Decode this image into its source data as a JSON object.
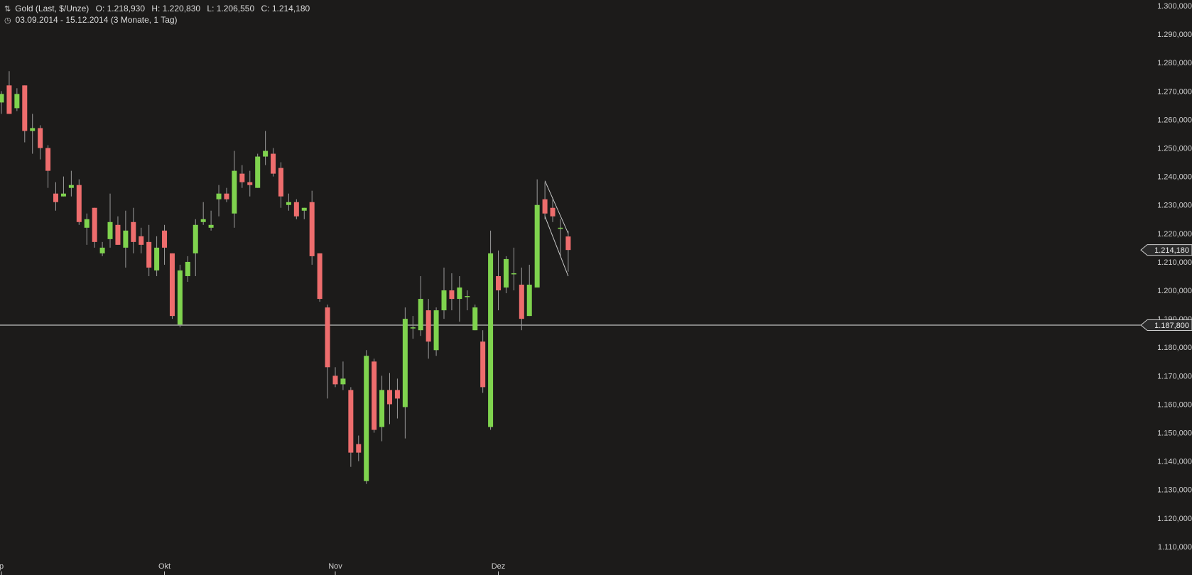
{
  "header": {
    "instrument": "Gold (Last, $/Unze)",
    "open": "O: 1.218,930",
    "high": "H: 1.220,830",
    "low": "L: 1.206,550",
    "close": "C: 1.214,180",
    "range": "03.09.2014 - 15.12.2014 (3 Monate, 1 Tag)"
  },
  "colors": {
    "background": "#1c1b1a",
    "up": "#7fd34e",
    "down": "#ee6d6d",
    "wick": "#9a9a9a",
    "axis_text": "#cfcfcf",
    "hline": "#e8e8e8"
  },
  "chart_data": {
    "type": "candlestick",
    "y_axis": {
      "ylim": [
        1105000,
        1302000
      ],
      "ticks": [
        {
          "value": 1300000,
          "label": "1.300,000"
        },
        {
          "value": 1290000,
          "label": "1.290,000"
        },
        {
          "value": 1280000,
          "label": "1.280,000"
        },
        {
          "value": 1270000,
          "label": "1.270,000"
        },
        {
          "value": 1260000,
          "label": "1.260,000"
        },
        {
          "value": 1250000,
          "label": "1.250,000"
        },
        {
          "value": 1240000,
          "label": "1.240,000"
        },
        {
          "value": 1230000,
          "label": "1.230,000"
        },
        {
          "value": 1220000,
          "label": "1.220,000"
        },
        {
          "value": 1210000,
          "label": "1.210,000"
        },
        {
          "value": 1200000,
          "label": "1.200,000"
        },
        {
          "value": 1190000,
          "label": "1.190,000"
        },
        {
          "value": 1180000,
          "label": "1.180,000"
        },
        {
          "value": 1170000,
          "label": "1.170,000"
        },
        {
          "value": 1160000,
          "label": "1.160,000"
        },
        {
          "value": 1150000,
          "label": "1.150,000"
        },
        {
          "value": 1140000,
          "label": "1.140,000"
        },
        {
          "value": 1130000,
          "label": "1.130,000"
        },
        {
          "value": 1120000,
          "label": "1.120,000"
        },
        {
          "value": 1110000,
          "label": "1.110,000"
        }
      ]
    },
    "x_axis": {
      "labels": [
        {
          "label": "p",
          "index": 0
        },
        {
          "label": "Okt",
          "index": 21
        },
        {
          "label": "Nov",
          "index": 43
        },
        {
          "label": "Dez",
          "index": 64
        }
      ]
    },
    "candles": [
      {
        "o": 1266000,
        "h": 1270000,
        "l": 1262000,
        "c": 1269000
      },
      {
        "o": 1272000,
        "h": 1277000,
        "l": 1262000,
        "c": 1262000
      },
      {
        "o": 1264000,
        "h": 1271000,
        "l": 1263000,
        "c": 1269000
      },
      {
        "o": 1272000,
        "h": 1272000,
        "l": 1252000,
        "c": 1256000
      },
      {
        "o": 1256000,
        "h": 1262000,
        "l": 1248000,
        "c": 1257000
      },
      {
        "o": 1257000,
        "h": 1258000,
        "l": 1246000,
        "c": 1250000
      },
      {
        "o": 1250000,
        "h": 1251000,
        "l": 1236000,
        "c": 1242000
      },
      {
        "o": 1234000,
        "h": 1238000,
        "l": 1228000,
        "c": 1231000
      },
      {
        "o": 1233000,
        "h": 1240000,
        "l": 1233000,
        "c": 1234000
      },
      {
        "o": 1236000,
        "h": 1242000,
        "l": 1233000,
        "c": 1237000
      },
      {
        "o": 1237000,
        "h": 1239000,
        "l": 1223000,
        "c": 1224000
      },
      {
        "o": 1222000,
        "h": 1227000,
        "l": 1216000,
        "c": 1225000
      },
      {
        "o": 1229000,
        "h": 1229000,
        "l": 1215000,
        "c": 1217000
      },
      {
        "o": 1213000,
        "h": 1217000,
        "l": 1212000,
        "c": 1215000
      },
      {
        "o": 1218000,
        "h": 1234000,
        "l": 1215000,
        "c": 1224000
      },
      {
        "o": 1223000,
        "h": 1226000,
        "l": 1216000,
        "c": 1216000
      },
      {
        "o": 1215000,
        "h": 1228000,
        "l": 1208000,
        "c": 1221000
      },
      {
        "o": 1224000,
        "h": 1229000,
        "l": 1213000,
        "c": 1217000
      },
      {
        "o": 1219000,
        "h": 1222000,
        "l": 1213000,
        "c": 1216000
      },
      {
        "o": 1217000,
        "h": 1223000,
        "l": 1205000,
        "c": 1208000
      },
      {
        "o": 1207000,
        "h": 1219000,
        "l": 1205000,
        "c": 1215000
      },
      {
        "o": 1221000,
        "h": 1223000,
        "l": 1209000,
        "c": 1215000
      },
      {
        "o": 1213000,
        "h": 1213000,
        "l": 1190000,
        "c": 1191000
      },
      {
        "o": 1188000,
        "h": 1209000,
        "l": 1187000,
        "c": 1207000
      },
      {
        "o": 1205000,
        "h": 1212000,
        "l": 1203000,
        "c": 1210000
      },
      {
        "o": 1213000,
        "h": 1225000,
        "l": 1205000,
        "c": 1223000
      },
      {
        "o": 1224000,
        "h": 1231000,
        "l": 1223000,
        "c": 1225000
      },
      {
        "o": 1222000,
        "h": 1228000,
        "l": 1221000,
        "c": 1223000
      },
      {
        "o": 1232000,
        "h": 1237000,
        "l": 1226000,
        "c": 1234000
      },
      {
        "o": 1234000,
        "h": 1236000,
        "l": 1231000,
        "c": 1232000
      },
      {
        "o": 1227000,
        "h": 1249000,
        "l": 1222000,
        "c": 1242000
      },
      {
        "o": 1241000,
        "h": 1244000,
        "l": 1236000,
        "c": 1238000
      },
      {
        "o": 1238000,
        "h": 1242000,
        "l": 1233000,
        "c": 1237000
      },
      {
        "o": 1236000,
        "h": 1248000,
        "l": 1236000,
        "c": 1247000
      },
      {
        "o": 1247000,
        "h": 1256000,
        "l": 1244000,
        "c": 1249000
      },
      {
        "o": 1248000,
        "h": 1250000,
        "l": 1240000,
        "c": 1241000
      },
      {
        "o": 1243000,
        "h": 1245000,
        "l": 1229000,
        "c": 1233000
      },
      {
        "o": 1230000,
        "h": 1234000,
        "l": 1228000,
        "c": 1231000
      },
      {
        "o": 1231000,
        "h": 1232000,
        "l": 1225000,
        "c": 1226000
      },
      {
        "o": 1228000,
        "h": 1229000,
        "l": 1225000,
        "c": 1229000
      },
      {
        "o": 1231000,
        "h": 1235000,
        "l": 1209000,
        "c": 1212000
      },
      {
        "o": 1213000,
        "h": 1213000,
        "l": 1196000,
        "c": 1197000
      },
      {
        "o": 1194000,
        "h": 1195000,
        "l": 1162000,
        "c": 1173000
      },
      {
        "o": 1170000,
        "h": 1173000,
        "l": 1166000,
        "c": 1167000
      },
      {
        "o": 1167000,
        "h": 1175000,
        "l": 1165000,
        "c": 1169000
      },
      {
        "o": 1165000,
        "h": 1166000,
        "l": 1138000,
        "c": 1143000
      },
      {
        "o": 1146000,
        "h": 1149000,
        "l": 1140000,
        "c": 1143000
      },
      {
        "o": 1133000,
        "h": 1179000,
        "l": 1132000,
        "c": 1177000
      },
      {
        "o": 1175000,
        "h": 1176000,
        "l": 1150000,
        "c": 1151000
      },
      {
        "o": 1152000,
        "h": 1170000,
        "l": 1147000,
        "c": 1165000
      },
      {
        "o": 1165000,
        "h": 1171000,
        "l": 1153000,
        "c": 1160000
      },
      {
        "o": 1165000,
        "h": 1169000,
        "l": 1155000,
        "c": 1162000
      },
      {
        "o": 1159000,
        "h": 1194000,
        "l": 1148000,
        "c": 1190000
      },
      {
        "o": 1187000,
        "h": 1191000,
        "l": 1183000,
        "c": 1187000
      },
      {
        "o": 1186000,
        "h": 1205000,
        "l": 1184000,
        "c": 1197000
      },
      {
        "o": 1193000,
        "h": 1197000,
        "l": 1176000,
        "c": 1182000
      },
      {
        "o": 1179000,
        "h": 1194000,
        "l": 1177000,
        "c": 1193000
      },
      {
        "o": 1193000,
        "h": 1208000,
        "l": 1190000,
        "c": 1200000
      },
      {
        "o": 1200000,
        "h": 1206000,
        "l": 1193000,
        "c": 1197000
      },
      {
        "o": 1197000,
        "h": 1205000,
        "l": 1189000,
        "c": 1201000
      },
      {
        "o": 1198000,
        "h": 1200000,
        "l": 1193000,
        "c": 1198000
      },
      {
        "o": 1186000,
        "h": 1195000,
        "l": 1186000,
        "c": 1194000
      },
      {
        "o": 1182000,
        "h": 1186000,
        "l": 1164000,
        "c": 1166000
      },
      {
        "o": 1152000,
        "h": 1221000,
        "l": 1151000,
        "c": 1213000
      },
      {
        "o": 1205000,
        "h": 1214000,
        "l": 1193000,
        "c": 1200000
      },
      {
        "o": 1201000,
        "h": 1212000,
        "l": 1199000,
        "c": 1211000
      },
      {
        "o": 1206000,
        "h": 1215000,
        "l": 1200000,
        "c": 1206000
      },
      {
        "o": 1202000,
        "h": 1208000,
        "l": 1186000,
        "c": 1190000
      },
      {
        "o": 1191000,
        "h": 1209000,
        "l": 1191000,
        "c": 1202000
      },
      {
        "o": 1201000,
        "h": 1239000,
        "l": 1201000,
        "c": 1230000
      },
      {
        "o": 1232000,
        "h": 1238000,
        "l": 1225000,
        "c": 1227000
      },
      {
        "o": 1229000,
        "h": 1232000,
        "l": 1224000,
        "c": 1226000
      },
      {
        "o": 1222000,
        "h": 1225000,
        "l": 1212000,
        "c": 1222000
      },
      {
        "o": 1218930,
        "h": 1220830,
        "l": 1206550,
        "c": 1214180
      }
    ],
    "horizontal_line": {
      "value": 1187800,
      "label": "1.187,800"
    },
    "last_price": {
      "value": 1214180,
      "label": "1.214,180"
    },
    "channel_lines": [
      {
        "from": {
          "index": 70,
          "value": 1238500
        },
        "to": {
          "index": 73,
          "value": 1220000
        }
      },
      {
        "from": {
          "index": 70,
          "value": 1226000
        },
        "to": {
          "index": 73,
          "value": 1205000
        }
      }
    ]
  }
}
